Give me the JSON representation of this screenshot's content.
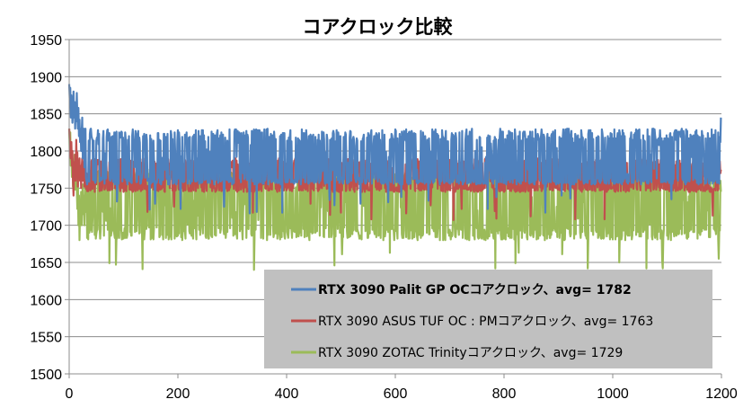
{
  "chart_data": {
    "type": "line",
    "title": "コアクロック比較",
    "xlabel": "",
    "ylabel": "",
    "xlim": [
      0,
      1200
    ],
    "ylim": [
      1500,
      1950
    ],
    "xticks": [
      0,
      200,
      400,
      600,
      800,
      1000,
      1200
    ],
    "yticks": [
      1500,
      1550,
      1600,
      1650,
      1700,
      1750,
      1800,
      1850,
      1900,
      1950
    ],
    "grid": "horizontal",
    "legend_position": "bottom-right",
    "series": [
      {
        "name": "RTX 3090 Palit GP OCコアクロック、avg= 1782",
        "color": "#4F81BD",
        "bold_legend": true,
        "base": 1782,
        "low": 1755,
        "high": 1830,
        "start_values": [
          1890,
          1870,
          1885,
          1845,
          1875,
          1860,
          1838,
          1852,
          1880,
          1845,
          1866,
          1830,
          1862,
          1840,
          1878,
          1848,
          1830,
          1858,
          1820,
          1842,
          1812,
          1830,
          1800,
          1825,
          1845,
          1790,
          1815,
          1830,
          1778,
          1805
        ],
        "end_values": [
          1812,
          1845
        ]
      },
      {
        "name": "RTX 3090 ASUS TUF OC : PMコアクロック、avg= 1763",
        "color": "#C0504D",
        "bold_legend": false,
        "base": 1763,
        "low": 1745,
        "high": 1790,
        "start_values": [
          1830,
          1815,
          1800,
          1790,
          1812,
          1780,
          1800,
          1760,
          1740,
          1785,
          1770,
          1795,
          1760,
          1815,
          1775,
          1798,
          1752,
          1785,
          1770,
          1790,
          1760,
          1780,
          1750,
          1778,
          1790,
          1760,
          1772,
          1785,
          1752,
          1770
        ],
        "end_values": [
          1770,
          1775
        ]
      },
      {
        "name": "RTX 3090 ZOTAC Trinityコアクロック、avg= 1729",
        "color": "#9BBB59",
        "bold_legend": false,
        "base": 1729,
        "low": 1680,
        "high": 1775,
        "start_values": [
          1830,
          1800,
          1825,
          1780,
          1800,
          1765,
          1790,
          1752,
          1780,
          1770,
          1795,
          1748,
          1778,
          1760,
          1750,
          1722,
          1760,
          1700,
          1740,
          1680,
          1720,
          1710,
          1745,
          1700,
          1730,
          1755,
          1715,
          1740,
          1700,
          1735
        ],
        "end_values": [
          1760,
          1745
        ]
      }
    ],
    "num_points": 1200
  }
}
